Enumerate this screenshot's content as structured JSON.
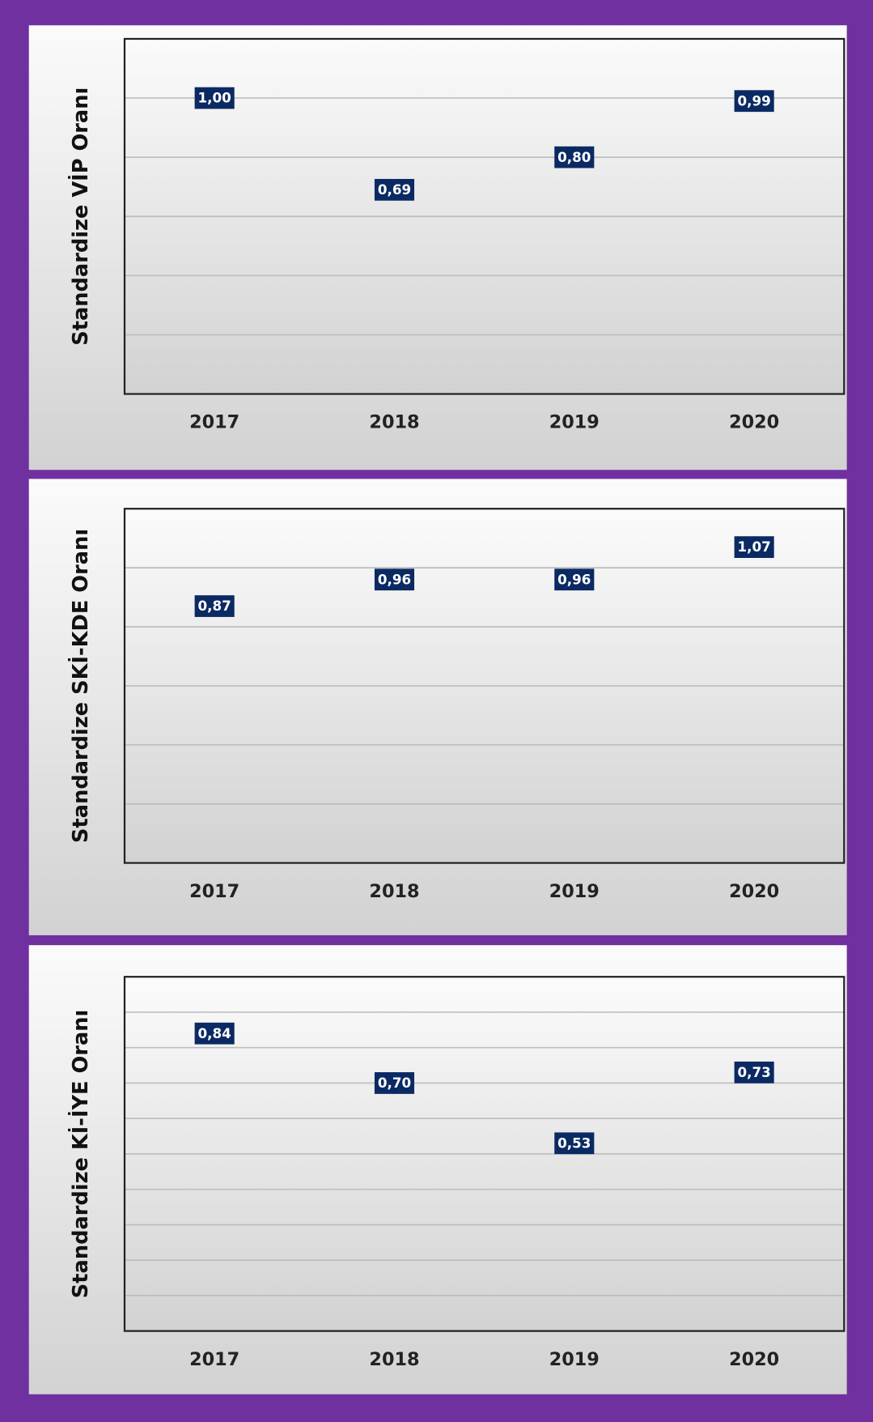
{
  "chart_data": [
    {
      "type": "scatter",
      "y_label": "Standardize VİP Oranı",
      "categories": [
        "2017",
        "2018",
        "2019",
        "2020"
      ],
      "values": [
        1.0,
        0.69,
        0.8,
        0.99
      ],
      "value_labels": [
        "1,00",
        "0,69",
        "0,80",
        "0,99"
      ],
      "color": "#5b9bd5",
      "label_color": "#0b2a63",
      "ylim": [
        0,
        1.2
      ],
      "yticks": [
        0,
        0.2,
        0.4,
        0.6,
        0.8,
        1.0,
        1.2
      ],
      "grid": true
    },
    {
      "type": "scatter",
      "y_label": "Standardize SKİ-KDE Oranı",
      "categories": [
        "2017",
        "2018",
        "2019",
        "2020"
      ],
      "values": [
        0.87,
        0.96,
        0.96,
        1.07
      ],
      "value_labels": [
        "0,87",
        "0,96",
        "0,96",
        "1,07"
      ],
      "color": "#5b9bd5",
      "label_color": "#0b2a63",
      "ylim": [
        0,
        1.2
      ],
      "yticks": [
        0,
        0.2,
        0.4,
        0.6,
        0.8,
        1.0,
        1.2
      ],
      "grid": true
    },
    {
      "type": "scatter",
      "y_label": "Standardize Kİ-İYE Oranı",
      "categories": [
        "2017",
        "2018",
        "2019",
        "2020"
      ],
      "values": [
        0.84,
        0.7,
        0.53,
        0.73
      ],
      "value_labels": [
        "0,84",
        "0,70",
        "0,53",
        "0,73"
      ],
      "color": "#5b9bd5",
      "label_color": "#0b2a63",
      "ylim": [
        0,
        1.0
      ],
      "yticks": [
        0,
        0.1,
        0.2,
        0.3,
        0.4,
        0.5,
        0.6,
        0.7,
        0.8,
        0.9,
        1.0
      ],
      "grid": true
    }
  ]
}
